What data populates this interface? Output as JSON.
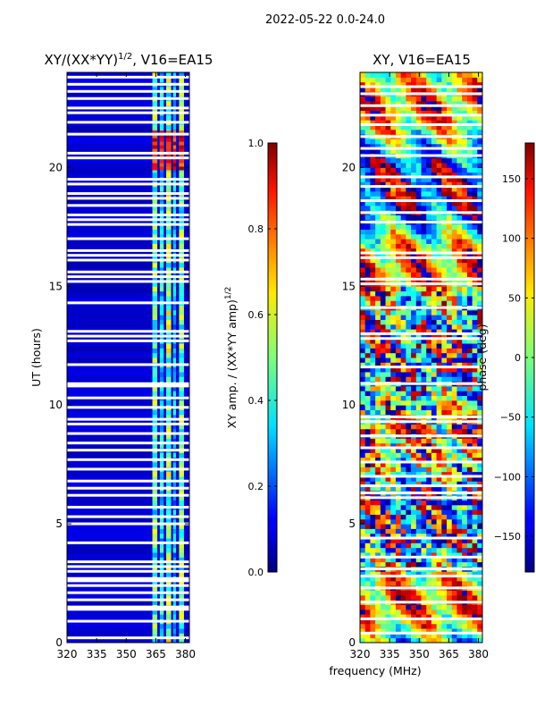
{
  "figure": {
    "suptitle": "2022-05-22 0.0-24.0",
    "shared_xlabel": "frequency (MHz)"
  },
  "chart_data": [
    {
      "type": "heatmap",
      "title_main": "XY/(XX*YY)",
      "title_sup": "1/2",
      "title_rest": ", V16=EA15",
      "xlabel": "",
      "ylabel": "UT (hours)",
      "xlim": [
        320,
        382
      ],
      "ylim": [
        0,
        24
      ],
      "xticks": [
        320,
        335,
        350,
        365,
        380
      ],
      "yticks": [
        0,
        5,
        10,
        15,
        20
      ],
      "colorbar": {
        "label": "XY amp. / (XX*YY amp)",
        "label_sup": "1/2",
        "range": [
          0.0,
          1.0
        ],
        "ticks": [
          "0.0",
          "0.2",
          "0.4",
          "0.6",
          "0.8",
          "1.0"
        ],
        "tick_values": [
          0.0,
          0.2,
          0.4,
          0.6,
          0.8,
          1.0
        ],
        "colormap": "jet"
      },
      "flagged_rows_ut": [
        0.2,
        0.9,
        1.4,
        1.5,
        1.8,
        2.1,
        2.4,
        2.6,
        2.7,
        3.0,
        3.2,
        3.4,
        4.2,
        5.0,
        5.3,
        5.7,
        6.2,
        6.5,
        6.8,
        7.3,
        7.7,
        8.1,
        8.4,
        8.8,
        9.2,
        9.4,
        9.9,
        10.3,
        10.8,
        10.9,
        11.7,
        12.7,
        12.9,
        13.1,
        14.3,
        15.2,
        15.4,
        15.6,
        16.1,
        16.3,
        16.5,
        17.0,
        17.6,
        17.8,
        18.0,
        18.4,
        18.7,
        18.9,
        19.3,
        19.5,
        20.4,
        20.6,
        21.4,
        21.9,
        22.3,
        22.5,
        22.9,
        23.2,
        23.5,
        23.8
      ],
      "rfi_channels_mhz": [
        {
          "center": 364.5,
          "width": 2.5,
          "level": 0.45
        },
        {
          "center": 368,
          "width": 2,
          "level": 0.35
        },
        {
          "center": 371.5,
          "width": 2.5,
          "level": 0.5
        },
        {
          "center": 374.5,
          "width": 1.5,
          "level": 0.3
        },
        {
          "center": 378,
          "width": 2.5,
          "level": 0.45
        }
      ],
      "saturated_block_ut": [
        19.9,
        21.5
      ],
      "background_level": 0.05
    },
    {
      "type": "heatmap",
      "title_main": "XY, V16=EA15",
      "title_sup": "",
      "title_rest": "",
      "xlabel": "frequency (MHz)",
      "ylabel": "",
      "xlim": [
        320,
        382
      ],
      "ylim": [
        0,
        24
      ],
      "xticks": [
        320,
        335,
        350,
        365,
        380
      ],
      "yticks": [
        0,
        5,
        10,
        15,
        20
      ],
      "colorbar": {
        "label": "phase (deg)",
        "label_sup": "",
        "range": [
          -180,
          180
        ],
        "ticks": [
          "150",
          "100",
          "50",
          "0",
          "−50",
          "−100",
          "−150"
        ],
        "tick_values": [
          150,
          100,
          50,
          0,
          -50,
          -100,
          -150
        ],
        "colormap": "jet"
      },
      "flagged_rows_ut": [
        0.4,
        1.0,
        1.7,
        2.3,
        2.8,
        3.1,
        3.6,
        4.4,
        6.1,
        6.3,
        6.6,
        7.0,
        7.6,
        8.2,
        8.7,
        9.3,
        9.5,
        10.9,
        11.6,
        12.8,
        13.0,
        14.1,
        15.1,
        15.3,
        16.2,
        16.4,
        17.7,
        18.1,
        18.6,
        19.2,
        19.6,
        20.5,
        20.8,
        21.3,
        21.8,
        22.2,
        22.6,
        23.1,
        23.4
      ],
      "phase_noise_ut_ranges": [
        [
          3.0,
          15.0
        ]
      ]
    }
  ]
}
